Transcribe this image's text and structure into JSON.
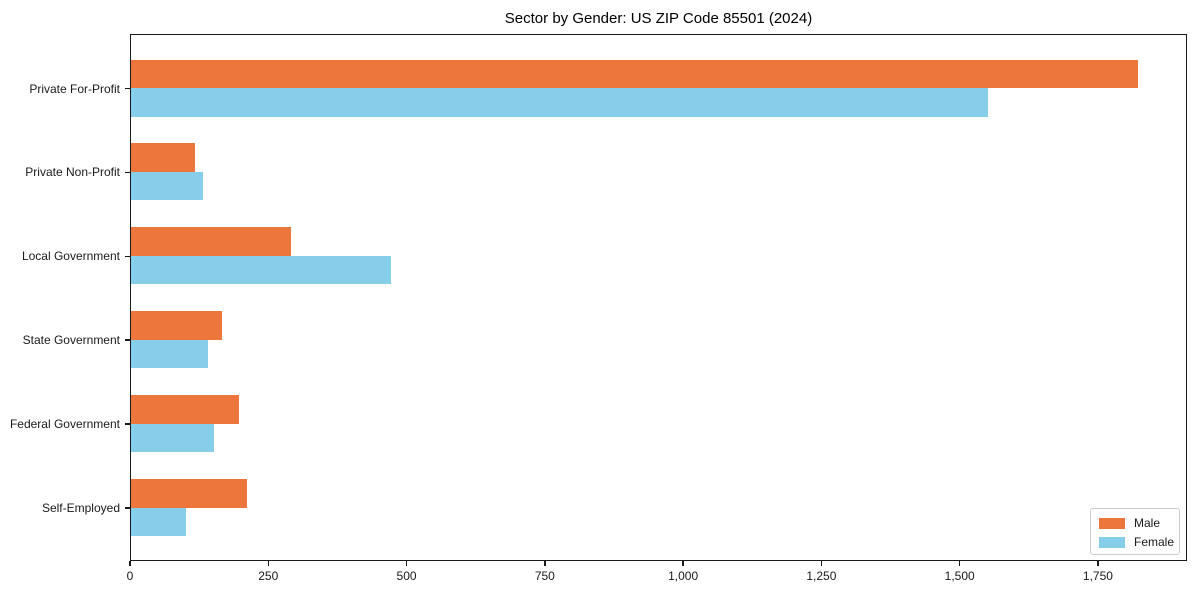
{
  "chart_data": {
    "type": "bar",
    "orientation": "horizontal",
    "title": "Sector by Gender: US ZIP Code 85501 (2024)",
    "xlabel": "",
    "ylabel": "",
    "categories": [
      "Private For-Profit",
      "Private Non-Profit",
      "Local Government",
      "State Government",
      "Federal Government",
      "Self-Employed"
    ],
    "series": [
      {
        "name": "Male",
        "color": "#EC763B",
        "values": [
          1820,
          115,
          290,
          165,
          195,
          210
        ]
      },
      {
        "name": "Female",
        "color": "#87CEEB",
        "values": [
          1550,
          130,
          470,
          140,
          150,
          100
        ]
      }
    ],
    "xlim": [
      0,
      1911
    ],
    "xticks": [
      0,
      250,
      500,
      750,
      1000,
      1250,
      1500,
      1750
    ],
    "xtick_labels": [
      "0",
      "250",
      "500",
      "750",
      "1,000",
      "1,250",
      "1,500",
      "1,750"
    ],
    "grid": false,
    "legend_position": "lower right"
  }
}
